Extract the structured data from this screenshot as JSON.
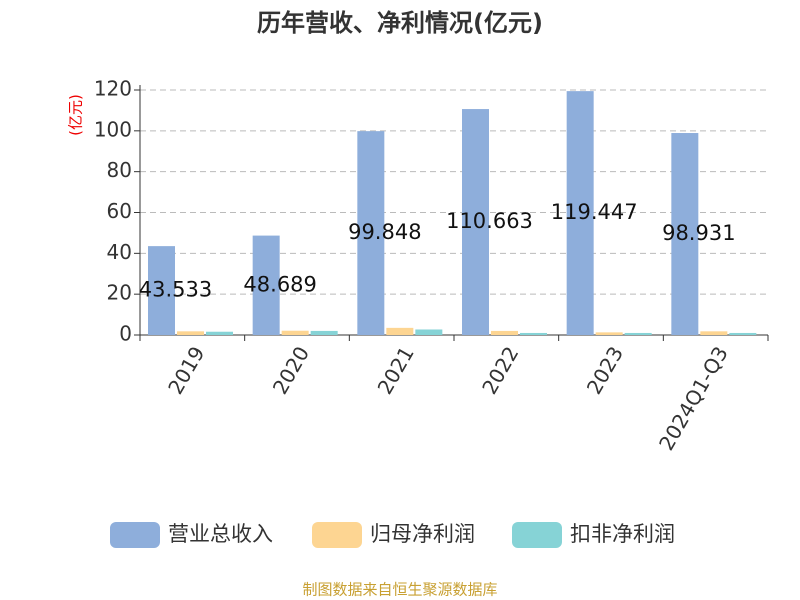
{
  "chart_data": {
    "type": "bar",
    "title": "历年营收、净利情况(亿元)",
    "y_label": "(亿元)",
    "categories": [
      "2019",
      "2020",
      "2021",
      "2022",
      "2023",
      "2024Q1-Q3"
    ],
    "series": [
      {
        "name": "营业总收入",
        "color": "#8eaedb",
        "values": [
          43.533,
          48.689,
          99.848,
          110.663,
          119.447,
          98.931
        ]
      },
      {
        "name": "归母净利润",
        "color": "#fdd592",
        "values": [
          1.8,
          2.1,
          3.5,
          2.0,
          1.3,
          1.8
        ]
      },
      {
        "name": "扣非净利润",
        "color": "#86d3d6",
        "values": [
          1.6,
          2.0,
          2.7,
          1.0,
          1.0,
          1.0
        ]
      }
    ],
    "ylim": [
      0,
      120
    ],
    "yticks": [
      0,
      20,
      40,
      60,
      80,
      100,
      120
    ],
    "grid": true,
    "source": "制图数据来自恒生聚源数据库"
  }
}
